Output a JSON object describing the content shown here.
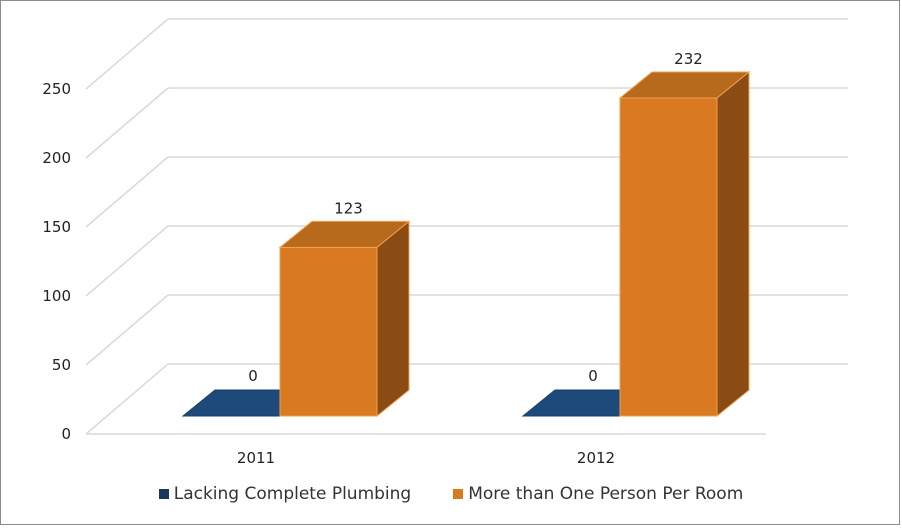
{
  "chart_data": {
    "type": "bar",
    "style": "3d-clustered",
    "categories": [
      "2011",
      "2012"
    ],
    "series": [
      {
        "name": "Lacking Complete Plumbing",
        "values": [
          0,
          0
        ],
        "color": "#17375e",
        "side_color": "#0f2a4a",
        "top_color": "#1d4a7a",
        "edge_color": "#1a3f6b"
      },
      {
        "name": "More than One Person Per Room",
        "values": [
          123,
          232
        ],
        "color": "#d97a22",
        "side_color": "#8b4c14",
        "top_color": "#b86a1c",
        "edge_color": "#f0a050"
      }
    ],
    "data_labels": [
      [
        "0",
        "0"
      ],
      [
        "123",
        "232"
      ]
    ],
    "yticks": [
      0,
      50,
      100,
      150,
      200,
      250
    ],
    "ylim": [
      0,
      250
    ],
    "gridlines": true,
    "legend_position": "bottom",
    "title": "",
    "xlabel": "",
    "ylabel": ""
  }
}
